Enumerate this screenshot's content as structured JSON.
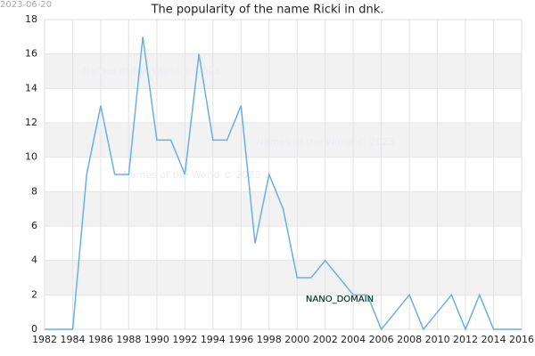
{
  "chart_data": {
    "type": "line",
    "title": "The popularity of the name Ricki in dnk.",
    "date_stamp": "2023-06-20",
    "watermarks": [
      "Names of the World © 2023",
      "Names of the World © 2023",
      "Names of the World © 2023"
    ],
    "overlay_label": "NANO_DOMAIN",
    "x": [
      1982,
      1983,
      1984,
      1985,
      1986,
      1987,
      1988,
      1989,
      1990,
      1991,
      1992,
      1993,
      1994,
      1995,
      1996,
      1997,
      1998,
      1999,
      2000,
      2001,
      2002,
      2003,
      2004,
      2005,
      2006,
      2007,
      2008,
      2009,
      2010,
      2011,
      2012,
      2013,
      2014,
      2015,
      2016
    ],
    "values": [
      0,
      0,
      0,
      9,
      13,
      9,
      9,
      17,
      11,
      11,
      9,
      16,
      11,
      11,
      13,
      5,
      9,
      7,
      3,
      3,
      4,
      3,
      2,
      2,
      0,
      1,
      2,
      0,
      1,
      2,
      0,
      2,
      0,
      0,
      0
    ],
    "color": "#6aaeea",
    "xlim": [
      1982,
      2016
    ],
    "ylim": [
      0,
      18
    ],
    "xticks": [
      1982,
      1984,
      1986,
      1988,
      1990,
      1992,
      1994,
      1996,
      1998,
      2000,
      2002,
      2004,
      2006,
      2008,
      2010,
      2012,
      2014,
      2016
    ],
    "yticks": [
      0,
      2,
      4,
      6,
      8,
      10,
      12,
      14,
      16,
      18
    ],
    "grid": true
  }
}
